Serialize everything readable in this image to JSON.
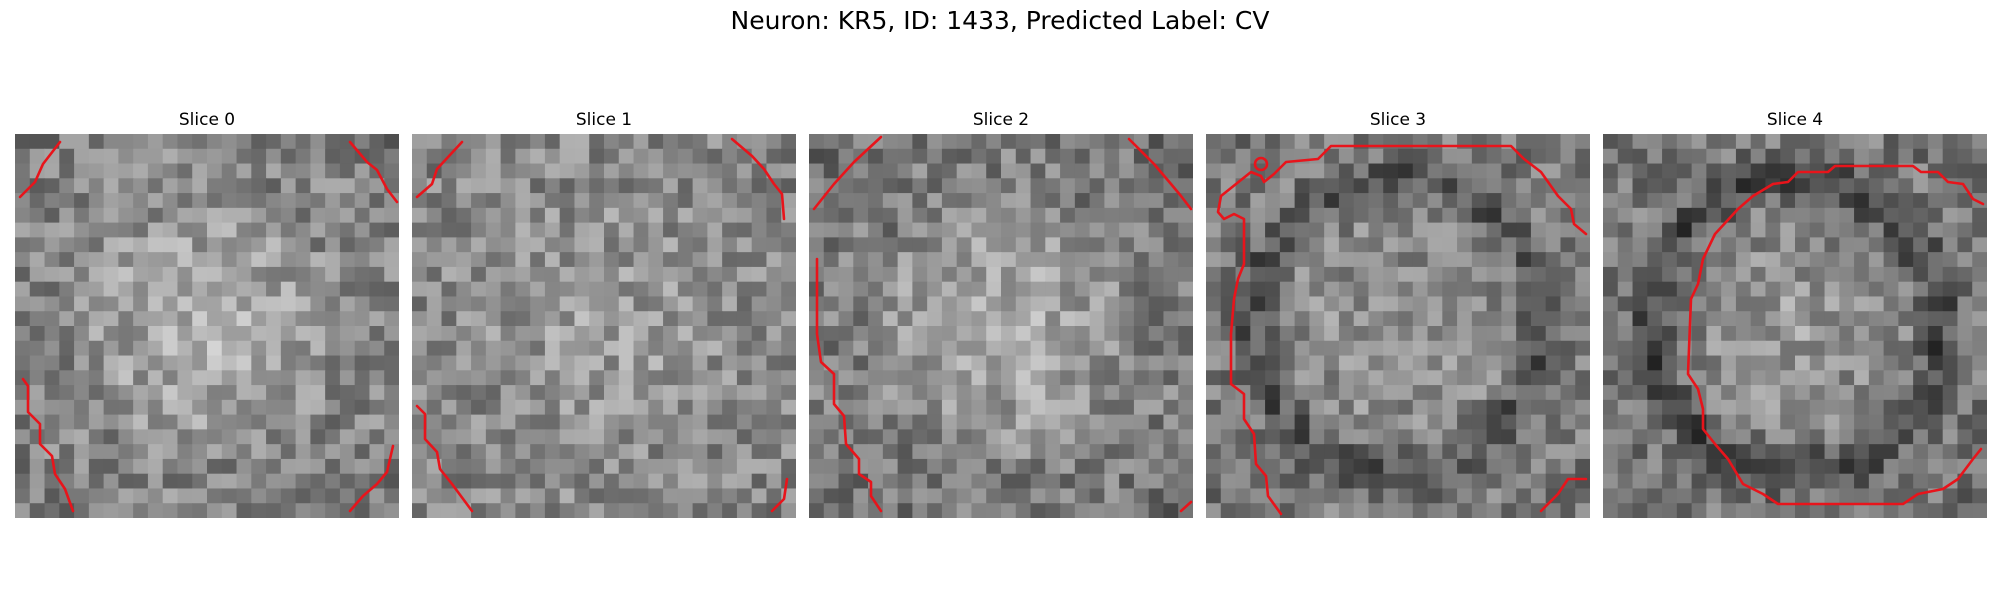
{
  "figure": {
    "title": "Neuron: KR5, ID: 1433, Predicted Label: CV"
  },
  "panels": [
    {
      "title": "Slice 0",
      "center_brightness": 0.7,
      "edge_brightness": 0.45,
      "ring_contrast": 0.05
    },
    {
      "title": "Slice 1",
      "center_brightness": 0.62,
      "edge_brightness": 0.5,
      "ring_contrast": 0.02
    },
    {
      "title": "Slice 2",
      "center_brightness": 0.7,
      "edge_brightness": 0.4,
      "ring_contrast": 0.05
    },
    {
      "title": "Slice 3",
      "center_brightness": 0.58,
      "edge_brightness": 0.45,
      "ring_contrast": 0.18
    },
    {
      "title": "Slice 4",
      "center_brightness": 0.6,
      "edge_brightness": 0.42,
      "ring_contrast": 0.22
    }
  ],
  "colors": {
    "contour": "#e8141b"
  }
}
